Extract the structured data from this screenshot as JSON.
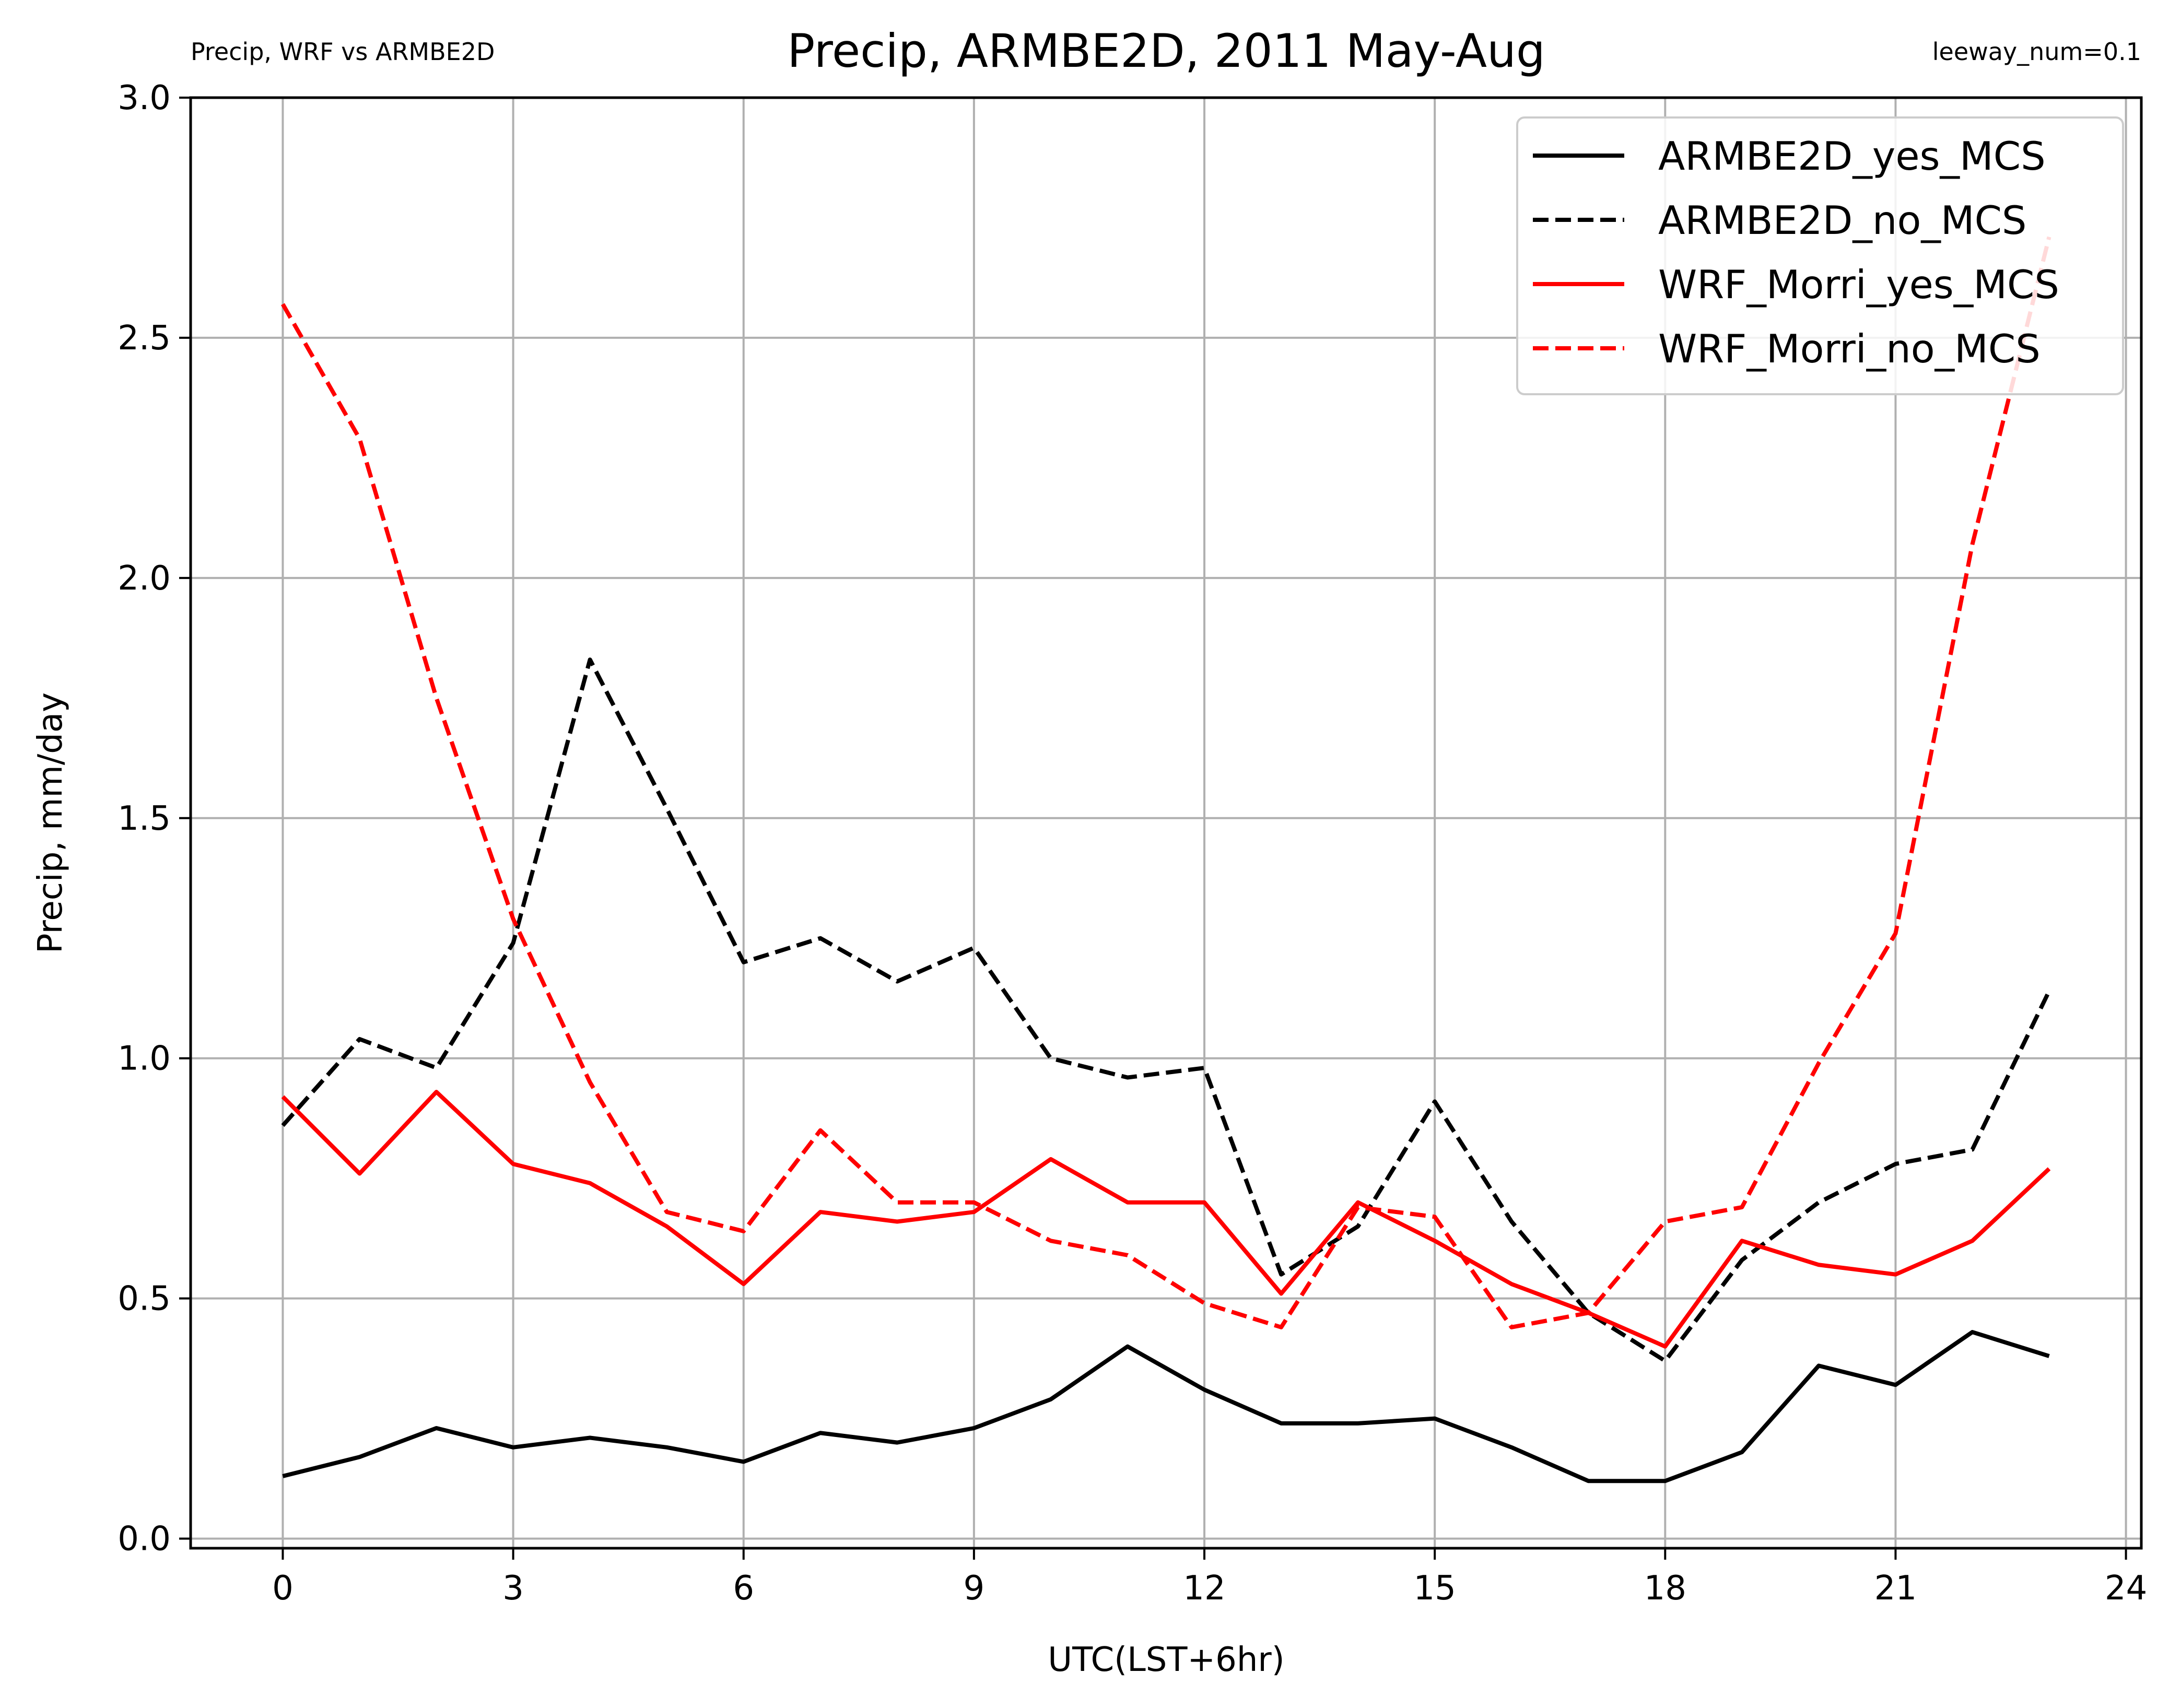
{
  "chart_data": {
    "type": "line",
    "title": "Precip, ARMBE2D, 2011 May-Aug",
    "subtitle_left": "Precip, WRF vs ARMBE2D",
    "subtitle_right": "leeway_num=0.1",
    "xlabel": "UTC(LST+6hr)",
    "ylabel": "Precip, mm/day",
    "xlim": [
      -1.2,
      24.2
    ],
    "ylim": [
      -0.02,
      3.0
    ],
    "xticks": [
      0,
      3,
      6,
      9,
      12,
      15,
      18,
      21,
      24
    ],
    "yticks": [
      0.0,
      0.5,
      1.0,
      1.5,
      2.0,
      2.5,
      3.0
    ],
    "xtick_labels": [
      "0",
      "3",
      "6",
      "9",
      "12",
      "15",
      "18",
      "21",
      "24"
    ],
    "ytick_labels": [
      "0.0",
      "0.5",
      "1.0",
      "1.5",
      "2.0",
      "2.5",
      "3.0"
    ],
    "grid": true,
    "legend_position": "top-right",
    "x": [
      0,
      1,
      2,
      3,
      4,
      5,
      6,
      7,
      8,
      9,
      10,
      11,
      12,
      13,
      14,
      15,
      16,
      17,
      18,
      19,
      20,
      21,
      22,
      23
    ],
    "series": [
      {
        "name": "ARMBE2D_yes_MCS",
        "color": "#000000",
        "dash": "solid",
        "values": [
          0.13,
          0.17,
          0.23,
          0.19,
          0.21,
          0.19,
          0.16,
          0.22,
          0.2,
          0.23,
          0.29,
          0.4,
          0.31,
          0.24,
          0.24,
          0.25,
          0.19,
          0.12,
          0.12,
          0.18,
          0.36,
          0.32,
          0.43,
          0.38
        ]
      },
      {
        "name": "ARMBE2D_no_MCS",
        "color": "#000000",
        "dash": "dashed",
        "values": [
          0.86,
          1.04,
          0.98,
          1.24,
          1.83,
          1.52,
          1.2,
          1.25,
          1.16,
          1.23,
          1.0,
          0.96,
          0.98,
          0.55,
          0.65,
          0.91,
          0.66,
          0.47,
          0.37,
          0.58,
          0.7,
          0.78,
          0.81,
          1.14
        ]
      },
      {
        "name": "WRF_Morri_yes_MCS",
        "color": "#ff0000",
        "dash": "solid",
        "values": [
          0.92,
          0.76,
          0.93,
          0.78,
          0.74,
          0.65,
          0.53,
          0.68,
          0.66,
          0.68,
          0.79,
          0.7,
          0.7,
          0.51,
          0.7,
          0.62,
          0.53,
          0.47,
          0.4,
          0.62,
          0.57,
          0.55,
          0.62,
          0.77
        ]
      },
      {
        "name": "WRF_Morri_no_MCS",
        "color": "#ff0000",
        "dash": "dashed",
        "values": [
          2.57,
          2.29,
          1.75,
          1.29,
          0.95,
          0.68,
          0.64,
          0.85,
          0.7,
          0.7,
          0.62,
          0.59,
          0.49,
          0.44,
          0.69,
          0.67,
          0.44,
          0.47,
          0.66,
          0.69,
          0.99,
          1.26,
          2.07,
          2.71
        ]
      }
    ]
  }
}
